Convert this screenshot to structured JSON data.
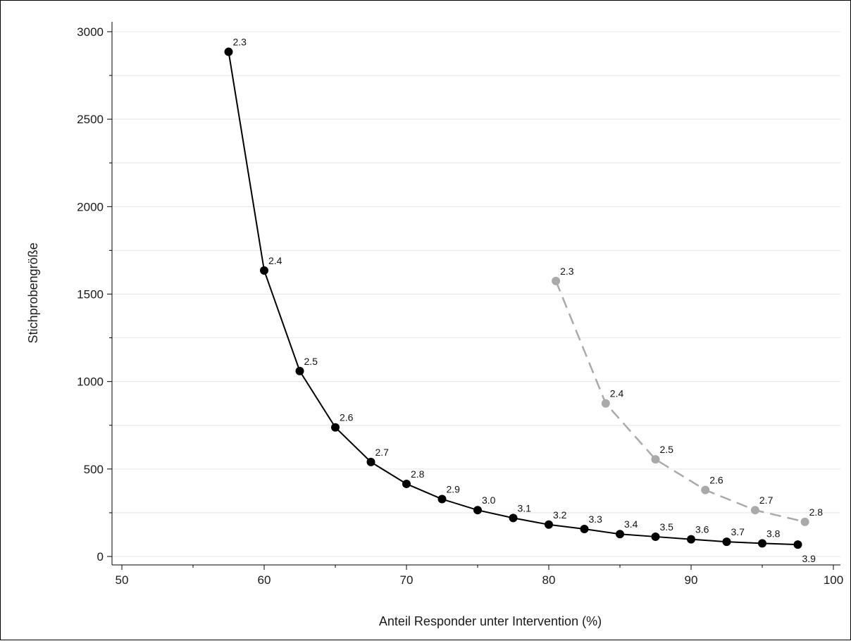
{
  "chart_data": {
    "type": "line",
    "title": "",
    "xlabel": "Anteil Responder unter Intervention (%)",
    "ylabel": "Stichprobengröße",
    "xlim": [
      50,
      100
    ],
    "ylim": [
      0,
      3000
    ],
    "xticks": [
      "50",
      "60",
      "70",
      "80",
      "90",
      "100"
    ],
    "yticks": [
      "0",
      "500",
      "1000",
      "1500",
      "2000",
      "2500",
      "3000"
    ],
    "grid": "horizontal",
    "legend": "none",
    "series": [
      {
        "color": "#000000",
        "line_style": "solid",
        "points": [
          {
            "x": 57.5,
            "y": 2885,
            "label": "2.3"
          },
          {
            "x": 60.0,
            "y": 1635,
            "label": "2.4"
          },
          {
            "x": 62.5,
            "y": 1060,
            "label": "2.5"
          },
          {
            "x": 65.0,
            "y": 738,
            "label": "2.6"
          },
          {
            "x": 67.5,
            "y": 540,
            "label": "2.7"
          },
          {
            "x": 70.0,
            "y": 415,
            "label": "2.8"
          },
          {
            "x": 72.5,
            "y": 328,
            "label": "2.9"
          },
          {
            "x": 75.0,
            "y": 265,
            "label": "3.0"
          },
          {
            "x": 77.5,
            "y": 220,
            "label": "3.1"
          },
          {
            "x": 80.0,
            "y": 182,
            "label": "3.2"
          },
          {
            "x": 82.5,
            "y": 157,
            "label": "3.3"
          },
          {
            "x": 85.0,
            "y": 128,
            "label": "3.4"
          },
          {
            "x": 87.5,
            "y": 113,
            "label": "3.5"
          },
          {
            "x": 90.0,
            "y": 98,
            "label": "3.6"
          },
          {
            "x": 92.5,
            "y": 84,
            "label": "3.7"
          },
          {
            "x": 95.0,
            "y": 75,
            "label": "3.8"
          },
          {
            "x": 97.5,
            "y": 68,
            "label": "3.9"
          }
        ]
      },
      {
        "color": "#aaaaaa",
        "line_style": "dashed",
        "points": [
          {
            "x": 80.5,
            "y": 1575,
            "label": "2.3"
          },
          {
            "x": 84.0,
            "y": 875,
            "label": "2.4"
          },
          {
            "x": 87.5,
            "y": 555,
            "label": "2.5"
          },
          {
            "x": 91.0,
            "y": 380,
            "label": "2.6"
          },
          {
            "x": 94.5,
            "y": 265,
            "label": "2.7"
          },
          {
            "x": 98.0,
            "y": 198,
            "label": "2.8"
          }
        ]
      }
    ]
  }
}
